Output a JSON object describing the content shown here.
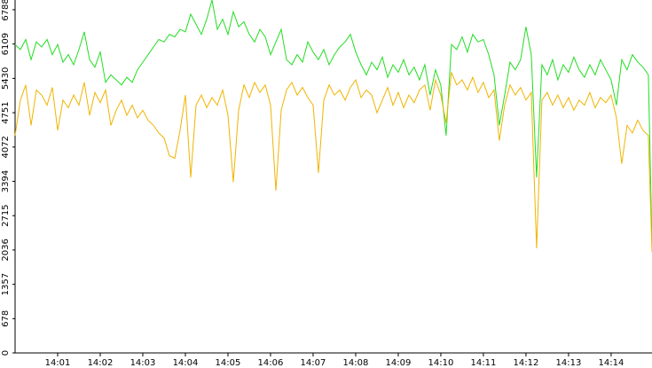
{
  "chart_data": {
    "type": "line",
    "xlim": [
      0,
      14.96
    ],
    "ylim": [
      0,
      6980
    ],
    "xticks": [
      {
        "value": 1,
        "label": "14:01"
      },
      {
        "value": 2,
        "label": "14:02"
      },
      {
        "value": 3,
        "label": "14:03"
      },
      {
        "value": 4,
        "label": "14:04"
      },
      {
        "value": 5,
        "label": "14:05"
      },
      {
        "value": 6,
        "label": "14:06"
      },
      {
        "value": 7,
        "label": "14:07"
      },
      {
        "value": 8,
        "label": "14:08"
      },
      {
        "value": 9,
        "label": "14:09"
      },
      {
        "value": 10,
        "label": "14:10"
      },
      {
        "value": 11,
        "label": "14:11"
      },
      {
        "value": 12,
        "label": "14:12"
      },
      {
        "value": 13,
        "label": "14:13"
      },
      {
        "value": 14,
        "label": "14:14"
      }
    ],
    "yticks": [
      0,
      678,
      1357,
      2036,
      2715,
      3394,
      4072,
      4751,
      5430,
      6109,
      6788
    ],
    "x": [
      0,
      0.125,
      0.25,
      0.375,
      0.5,
      0.625,
      0.75,
      0.875,
      1,
      1.125,
      1.25,
      1.375,
      1.5,
      1.625,
      1.75,
      1.875,
      2,
      2.125,
      2.25,
      2.375,
      2.5,
      2.625,
      2.75,
      2.875,
      3,
      3.125,
      3.25,
      3.375,
      3.5,
      3.625,
      3.75,
      3.875,
      4,
      4.125,
      4.25,
      4.375,
      4.5,
      4.625,
      4.75,
      4.875,
      5,
      5.125,
      5.25,
      5.375,
      5.5,
      5.625,
      5.75,
      5.875,
      6,
      6.125,
      6.25,
      6.375,
      6.5,
      6.625,
      6.75,
      6.875,
      7,
      7.125,
      7.25,
      7.375,
      7.5,
      7.625,
      7.75,
      7.875,
      8,
      8.125,
      8.25,
      8.375,
      8.5,
      8.625,
      8.75,
      8.875,
      9,
      9.125,
      9.25,
      9.375,
      9.5,
      9.625,
      9.75,
      9.875,
      10,
      10.125,
      10.25,
      10.375,
      10.5,
      10.625,
      10.75,
      10.875,
      11,
      11.125,
      11.25,
      11.375,
      11.5,
      11.625,
      11.75,
      11.875,
      12,
      12.125,
      12.25,
      12.375,
      12.5,
      12.625,
      12.75,
      12.875,
      13,
      13.125,
      13.25,
      13.375,
      13.5,
      13.625,
      13.75,
      13.875,
      14,
      14.125,
      14.25,
      14.375,
      14.5,
      14.625,
      14.75,
      14.875,
      14.96
    ],
    "series": [
      {
        "color": "#22dd22",
        "values": [
          6100,
          6000,
          6200,
          5800,
          6150,
          6050,
          6200,
          5900,
          6100,
          5750,
          5900,
          5700,
          6000,
          6350,
          5800,
          5650,
          5950,
          5350,
          5500,
          5400,
          5300,
          5450,
          5350,
          5600,
          5750,
          5900,
          6050,
          6200,
          6150,
          6300,
          6250,
          6400,
          6350,
          6700,
          6500,
          6300,
          6600,
          6980,
          6400,
          6600,
          6300,
          6750,
          6450,
          6550,
          6300,
          6150,
          6400,
          6250,
          5900,
          6150,
          6400,
          5800,
          5700,
          5900,
          5750,
          6150,
          5950,
          5800,
          6000,
          5700,
          5900,
          6050,
          6150,
          6300,
          5950,
          5700,
          5500,
          5750,
          5600,
          5850,
          5450,
          5700,
          5550,
          5800,
          5500,
          5650,
          5400,
          5700,
          5100,
          5600,
          5300,
          4300,
          6100,
          6000,
          6250,
          5950,
          6300,
          6150,
          6200,
          5900,
          5500,
          4500,
          5100,
          5750,
          5600,
          5800,
          6450,
          5900,
          3470,
          5700,
          5500,
          5800,
          5400,
          5700,
          5550,
          5850,
          5600,
          5450,
          5700,
          5500,
          5800,
          5600,
          5400,
          4900,
          5800,
          5600,
          5900,
          5750,
          5650,
          5500,
          2150
        ]
      },
      {
        "color": "#f0b400",
        "values": [
          4300,
          5000,
          5300,
          4500,
          5200,
          5100,
          4900,
          5250,
          4400,
          5000,
          4850,
          5100,
          4900,
          5350,
          4700,
          5150,
          4950,
          5200,
          4500,
          4800,
          5000,
          4700,
          4900,
          4650,
          4800,
          4600,
          4500,
          4350,
          4250,
          3900,
          3850,
          4400,
          5100,
          3470,
          4900,
          5100,
          4850,
          5050,
          4900,
          5200,
          4700,
          3380,
          4800,
          5300,
          5050,
          5350,
          5150,
          5300,
          4900,
          3210,
          4800,
          5200,
          5350,
          5100,
          5250,
          5050,
          4900,
          3560,
          5000,
          5300,
          5100,
          5200,
          5000,
          5250,
          5400,
          5050,
          5200,
          5100,
          4750,
          5000,
          5250,
          4900,
          5150,
          4850,
          5100,
          4950,
          5200,
          5300,
          4800,
          5400,
          5100,
          4550,
          5550,
          5300,
          5400,
          5200,
          5450,
          5150,
          5350,
          5050,
          5200,
          4200,
          4900,
          5300,
          5100,
          5250,
          5000,
          5150,
          2070,
          5000,
          5150,
          4900,
          5100,
          4850,
          5050,
          4800,
          5000,
          4900,
          5150,
          4850,
          5050,
          4950,
          5100,
          4650,
          3740,
          4500,
          4350,
          4600,
          4400,
          4300,
          2000
        ]
      }
    ]
  }
}
